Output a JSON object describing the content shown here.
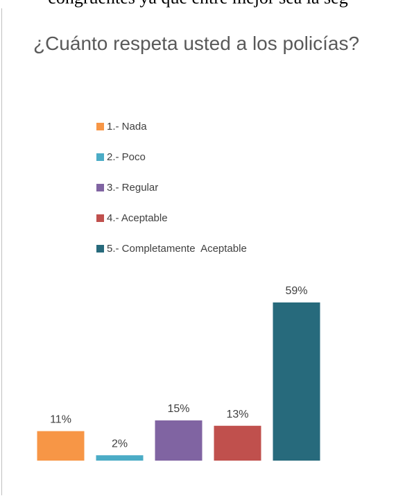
{
  "top_text": "congruentes ya que entre mejor sea la seg",
  "chart_data": {
    "type": "bar",
    "title": "¿Cuánto respeta usted a los policías?",
    "categories": [
      "1.- Nada",
      "2.- Poco",
      "3.- Regular",
      "4.- Aceptable",
      "5.- Completamente  Aceptable"
    ],
    "values": [
      11,
      2,
      15,
      13,
      59
    ],
    "value_labels": [
      "11%",
      "2%",
      "15%",
      "13%",
      "59%"
    ],
    "unit": "%",
    "colors": [
      "#F79646",
      "#4BACC6",
      "#8064A2",
      "#C0504D",
      "#276A7C"
    ],
    "legend_position": "top",
    "grid": false,
    "ylim": [
      0,
      59
    ]
  }
}
